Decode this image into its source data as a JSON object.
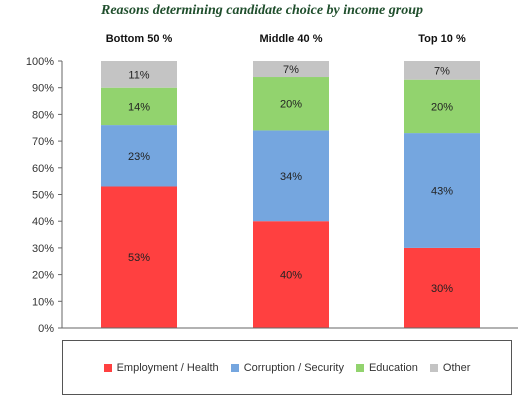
{
  "chart_data": {
    "type": "bar",
    "stacked": true,
    "title": "Reasons determining candidate choice by income group",
    "categories": [
      "Bottom 50 %",
      "Middle 40 %",
      "Top 10 %"
    ],
    "series": [
      {
        "name": "Employment / Health",
        "color": "#ff4040",
        "values": [
          53,
          40,
          30
        ],
        "labels": [
          "53%",
          "40%",
          "30%"
        ]
      },
      {
        "name": "Corruption / Security",
        "color": "#75a6df",
        "values": [
          23,
          34,
          43
        ],
        "labels": [
          "23%",
          "34%",
          "43%"
        ]
      },
      {
        "name": "Education",
        "color": "#92d36e",
        "values": [
          14,
          20,
          20
        ],
        "labels": [
          "14%",
          "20%",
          "20%"
        ]
      },
      {
        "name": "Other",
        "color": "#c4c4c4",
        "values": [
          11,
          7,
          7
        ],
        "labels": [
          "11%",
          "7%",
          "7%"
        ]
      }
    ],
    "ylim": [
      0,
      100
    ],
    "yticks": [
      "0%",
      "10%",
      "20%",
      "30%",
      "40%",
      "50%",
      "60%",
      "70%",
      "80%",
      "90%",
      "100%"
    ],
    "grid": false,
    "legend_position": "bottom"
  }
}
